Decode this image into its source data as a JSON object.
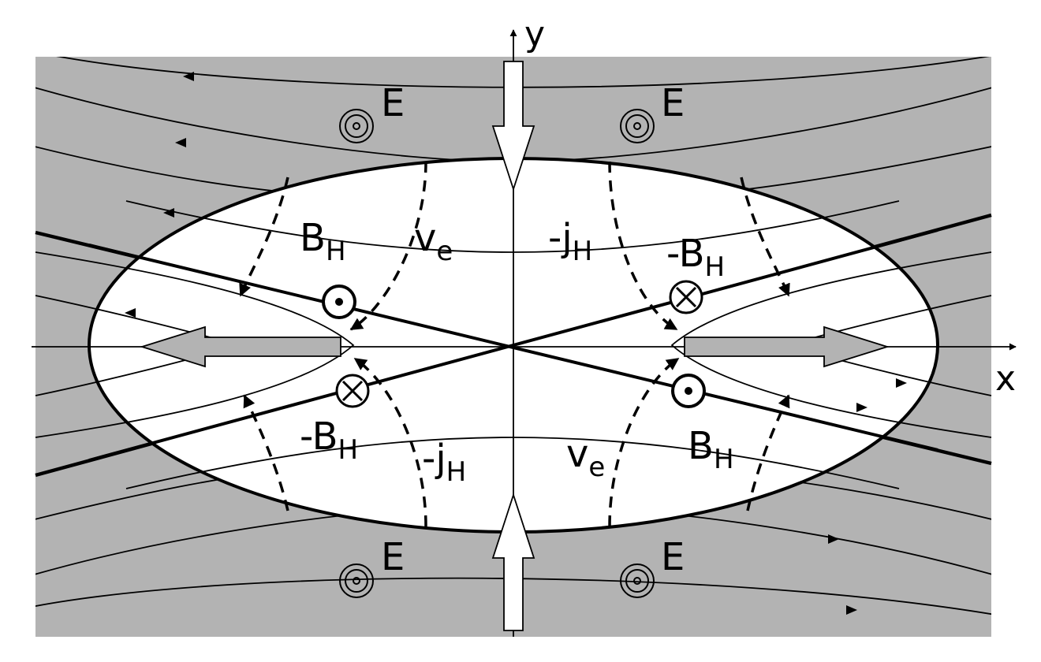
{
  "axes": {
    "x_label": "x",
    "y_label": "y"
  },
  "labels": {
    "electric_field": "E",
    "b_hall": "B",
    "b_hall_sub": "H",
    "neg_b_hall": "-B",
    "neg_b_hall_sub": "H",
    "neg_j_hall": "-j",
    "neg_j_hall_sub": "H",
    "electron_velocity": "v",
    "electron_velocity_sub": "e"
  },
  "colors": {
    "outer_region": "#b3b3b3",
    "inner_region": "#ffffff",
    "lines": "#000000",
    "flow_arrow_fill": "#b3b3b3",
    "inflow_arrow_fill": "#ffffff"
  },
  "symbols": {
    "out_of_page": "out-of-page-dot-icon",
    "into_page": "into-page-cross-icon",
    "field_out_of_page": "double-circle-dot-icon"
  }
}
